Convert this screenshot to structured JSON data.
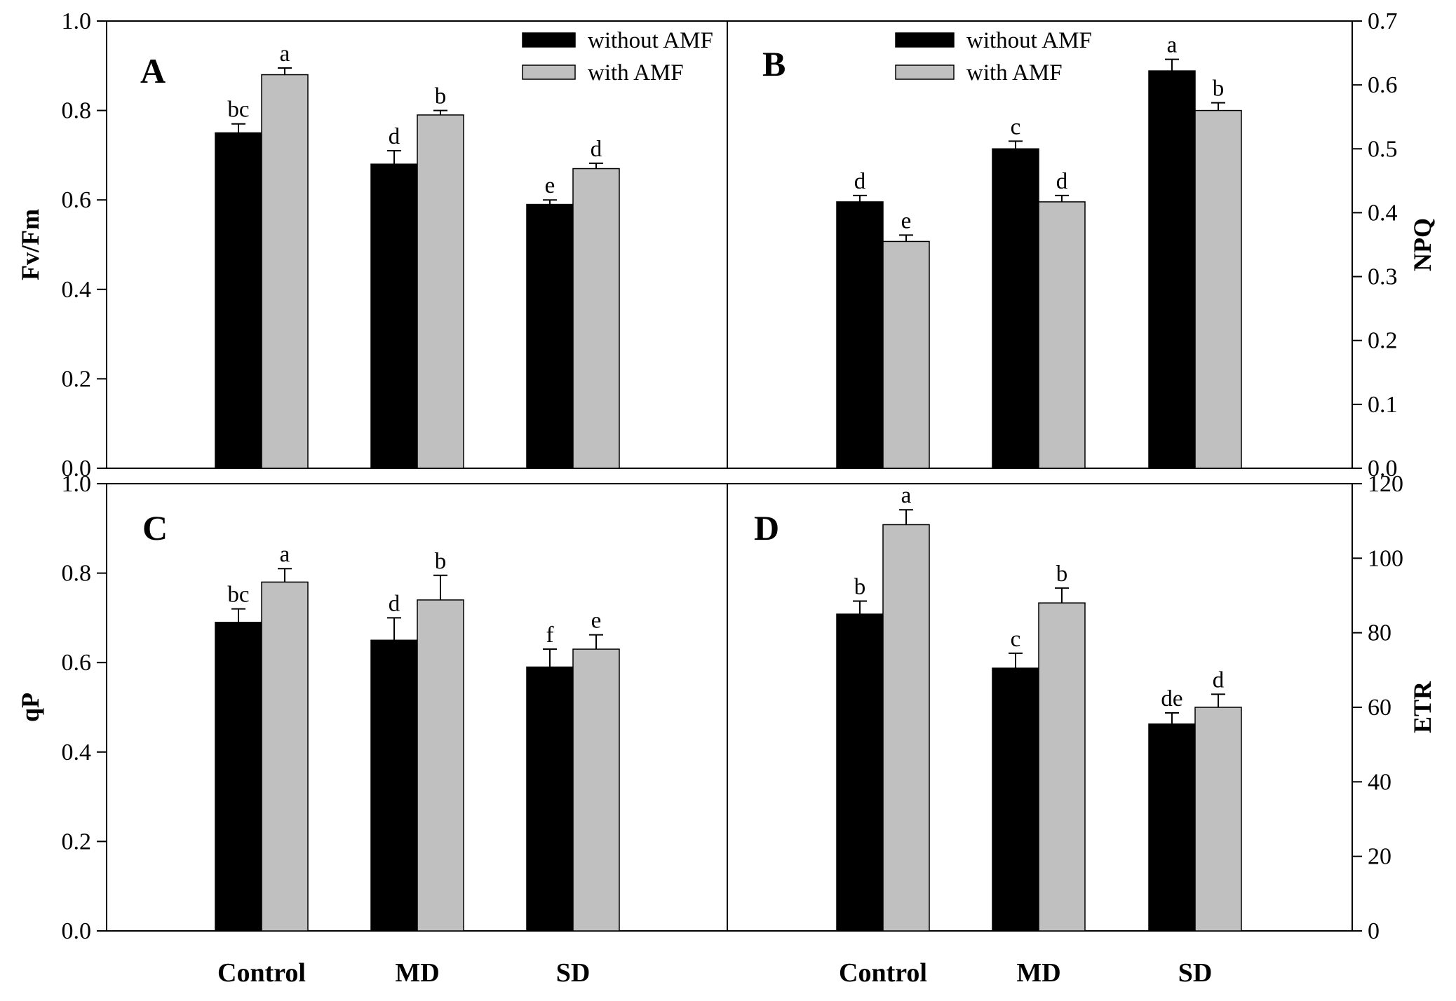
{
  "chart_data": [
    {
      "type": "bar",
      "panel_label": "A",
      "categories": [
        "Control",
        "MD",
        "SD"
      ],
      "ylabel": "Fv/Fm",
      "ylim": [
        0,
        1.0
      ],
      "yticks": [
        "0.0",
        "0.2",
        "0.4",
        "0.6",
        "0.8",
        "1.0"
      ],
      "series": [
        {
          "name": "without AMF",
          "values": [
            0.75,
            0.68,
            0.59
          ],
          "errors": [
            0.02,
            0.03,
            0.01
          ],
          "letters": [
            "bc",
            "d",
            "e"
          ]
        },
        {
          "name": "with AMF",
          "values": [
            0.88,
            0.79,
            0.67
          ],
          "errors": [
            0.015,
            0.01,
            0.012
          ],
          "letters": [
            "a",
            "b",
            "d"
          ]
        }
      ],
      "legend": "top-right"
    },
    {
      "type": "bar",
      "panel_label": "B",
      "categories": [
        "Control",
        "MD",
        "SD"
      ],
      "ylabel": "NPQ",
      "ylim": [
        0,
        0.7
      ],
      "yticks": [
        "0.0",
        "0.1",
        "0.2",
        "0.3",
        "0.4",
        "0.5",
        "0.6",
        "0.7"
      ],
      "series": [
        {
          "name": "without AMF",
          "values": [
            0.417,
            0.5,
            0.622
          ],
          "errors": [
            0.01,
            0.012,
            0.018
          ],
          "letters": [
            "d",
            "c",
            "a"
          ]
        },
        {
          "name": "with AMF",
          "values": [
            0.355,
            0.417,
            0.56
          ],
          "errors": [
            0.01,
            0.01,
            0.012
          ],
          "letters": [
            "e",
            "d",
            "b"
          ]
        }
      ],
      "legend": "top-center"
    },
    {
      "type": "bar",
      "panel_label": "C",
      "categories": [
        "Control",
        "MD",
        "SD"
      ],
      "ylabel": "qP",
      "ylim": [
        0,
        1.0
      ],
      "yticks": [
        "0.0",
        "0.2",
        "0.4",
        "0.6",
        "0.8",
        "1.0"
      ],
      "series": [
        {
          "name": "without AMF",
          "values": [
            0.69,
            0.65,
            0.59
          ],
          "errors": [
            0.03,
            0.05,
            0.04
          ],
          "letters": [
            "bc",
            "d",
            "f"
          ]
        },
        {
          "name": "with AMF",
          "values": [
            0.78,
            0.74,
            0.63
          ],
          "errors": [
            0.03,
            0.055,
            0.032
          ],
          "letters": [
            "a",
            "b",
            "e"
          ]
        }
      ]
    },
    {
      "type": "bar",
      "panel_label": "D",
      "categories": [
        "Control",
        "MD",
        "SD"
      ],
      "ylabel": "ETR",
      "ylim": [
        0,
        120
      ],
      "yticks": [
        "0",
        "20",
        "40",
        "60",
        "80",
        "100",
        "120"
      ],
      "series": [
        {
          "name": "without AMF",
          "values": [
            85,
            70.5,
            55.5
          ],
          "errors": [
            3.5,
            4,
            3
          ],
          "letters": [
            "b",
            "c",
            "de"
          ]
        },
        {
          "name": "with AMF",
          "values": [
            109,
            88,
            60
          ],
          "errors": [
            4,
            4,
            3.5
          ],
          "letters": [
            "a",
            "b",
            "d"
          ]
        }
      ]
    }
  ],
  "colors": {
    "without AMF": "#000000",
    "with AMF": "#c0c0c0"
  }
}
